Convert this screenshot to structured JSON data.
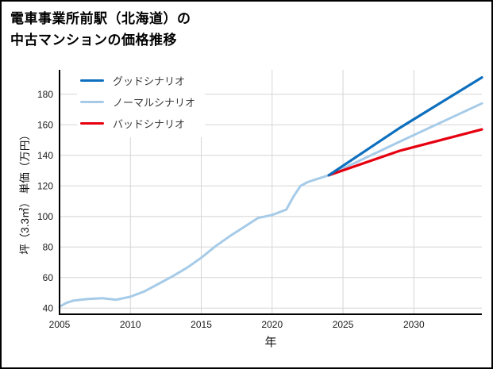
{
  "title": {
    "line1": "電車事業所前駅（北海道）の",
    "line2": "中古マンションの価格推移"
  },
  "chart_data": {
    "type": "line",
    "title": "電車事業所前駅（北海道）の中古マンションの価格推移",
    "xlabel": "年",
    "ylabel": "坪（3.3㎡） 単価（万円）",
    "xlim": [
      2005,
      2034.8
    ],
    "ylim": [
      36,
      196
    ],
    "xticks": [
      2005,
      2010,
      2015,
      2020,
      2025,
      2030
    ],
    "yticks": [
      40,
      60,
      80,
      100,
      120,
      140,
      160,
      180
    ],
    "grid": true,
    "grid_color": "#d6d6d6",
    "axis_color": "#000000",
    "legend_position": "top-left",
    "series": [
      {
        "name": "グッドシナリオ",
        "color": "#0d6fbe",
        "width": 3.2,
        "points": [
          [
            2024,
            127
          ],
          [
            2029,
            158
          ],
          [
            2034.8,
            191
          ]
        ]
      },
      {
        "name": "ノーマルシナリオ",
        "color": "#a6cbe8",
        "width": 3,
        "points": [
          [
            2005,
            41
          ],
          [
            2005.5,
            43.5
          ],
          [
            2006,
            45
          ],
          [
            2007,
            46
          ],
          [
            2008,
            46.5
          ],
          [
            2009,
            45.5
          ],
          [
            2010,
            47.5
          ],
          [
            2011,
            51
          ],
          [
            2012,
            56
          ],
          [
            2013,
            61
          ],
          [
            2014,
            66.5
          ],
          [
            2015,
            73
          ],
          [
            2016,
            80.5
          ],
          [
            2017,
            87
          ],
          [
            2018,
            93
          ],
          [
            2019,
            99
          ],
          [
            2019.5,
            100
          ],
          [
            2020,
            101
          ],
          [
            2021,
            104.5
          ],
          [
            2021.5,
            113
          ],
          [
            2022,
            120
          ],
          [
            2022.5,
            122.5
          ],
          [
            2023,
            124
          ],
          [
            2024,
            127
          ],
          [
            2029,
            149
          ],
          [
            2034.8,
            174
          ]
        ]
      },
      {
        "name": "バッドシナリオ",
        "color": "#e6000f",
        "width": 3.2,
        "points": [
          [
            2024,
            127
          ],
          [
            2029,
            143
          ],
          [
            2034.8,
            157
          ]
        ]
      }
    ]
  }
}
